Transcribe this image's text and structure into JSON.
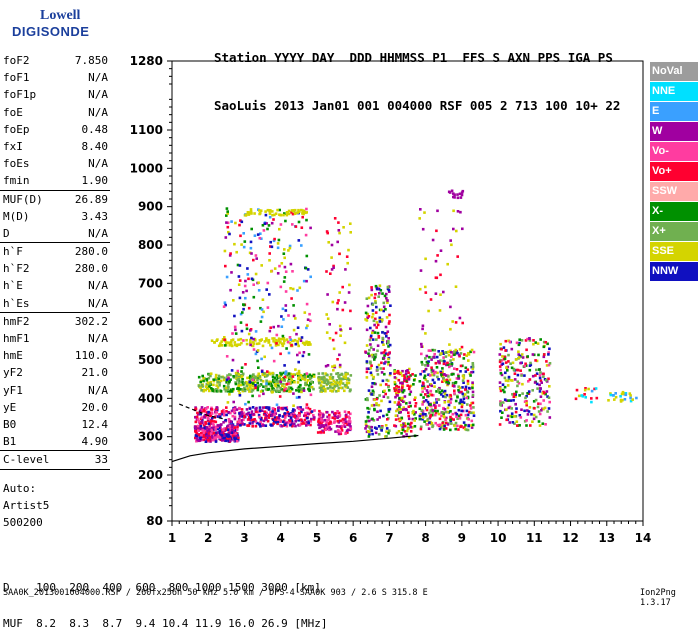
{
  "logo": {
    "line1": "Lowell",
    "line2": "DIGISONDE"
  },
  "header": {
    "row1": "Station YYYY DAY  DDD HHMMSS P1  FFS S AXN PPS IGA PS",
    "row2": "SaoLuis 2013 Jan01 001 004000 RSF 005 2 713 100 10+ 22"
  },
  "params": [
    [
      {
        "name": "foF2",
        "value": "7.850"
      },
      {
        "name": "foF1",
        "value": "N/A"
      },
      {
        "name": "foF1p",
        "value": "N/A"
      },
      {
        "name": "foE",
        "value": "N/A"
      },
      {
        "name": "foEp",
        "value": "0.48"
      },
      {
        "name": "fxI",
        "value": "8.40"
      },
      {
        "name": "foEs",
        "value": "N/A"
      },
      {
        "name": "fmin",
        "value": "1.90"
      }
    ],
    [
      {
        "name": "MUF(D)",
        "value": "26.89"
      },
      {
        "name": "M(D)",
        "value": "3.43"
      },
      {
        "name": "D",
        "value": "N/A"
      }
    ],
    [
      {
        "name": "h`F",
        "value": "280.0"
      },
      {
        "name": "h`F2",
        "value": "280.0"
      },
      {
        "name": "h`E",
        "value": "N/A"
      },
      {
        "name": "h`Es",
        "value": "N/A"
      }
    ],
    [
      {
        "name": "hmF2",
        "value": "302.2"
      },
      {
        "name": "hmF1",
        "value": "N/A"
      },
      {
        "name": "hmE",
        "value": "110.0"
      },
      {
        "name": "yF2",
        "value": "21.0"
      },
      {
        "name": "yF1",
        "value": "N/A"
      },
      {
        "name": "yE",
        "value": "20.0"
      },
      {
        "name": "B0",
        "value": "12.4"
      },
      {
        "name": "B1",
        "value": "4.90"
      }
    ],
    [
      {
        "name": "C-level",
        "value": "33"
      }
    ]
  ],
  "auto": {
    "line1": "Auto:",
    "line2": "Artist5",
    "line3": "500200"
  },
  "legend": [
    {
      "label": "NoVal",
      "color": "#9c9c9c"
    },
    {
      "label": "NNE",
      "color": "#00e0ff"
    },
    {
      "label": "E",
      "color": "#3aa0ff"
    },
    {
      "label": "W",
      "color": "#a000a0"
    },
    {
      "label": "Vo-",
      "color": "#ff3ca0"
    },
    {
      "label": "Vo+",
      "color": "#ff0030"
    },
    {
      "label": "SSW",
      "color": "#ffaaaa"
    },
    {
      "label": "X-",
      "color": "#009000"
    },
    {
      "label": "X+",
      "color": "#70b050"
    },
    {
      "label": "SSE",
      "color": "#d4d400"
    },
    {
      "label": "NNW",
      "color": "#1010c0"
    }
  ],
  "dmuf": {
    "d_row": "D    100  200  400  600  800 1000 1500 3000 [km]",
    "muf_row": "MUF  8.2  8.3  8.7  9.4 10.4 11.9 16.0 26.9 [MHz]"
  },
  "footer": "SAA0K_2013001004000.RSF / 260fx256h 50 kHz 5.0 km / DPS-4 SAA0K 903 / 2.6 S 315.8 E",
  "version": "Ion2Png 1.3.17",
  "chart_data": {
    "type": "scatter",
    "x_ticks": [
      1,
      2,
      3,
      4,
      5,
      6,
      7,
      8,
      9,
      10,
      11,
      12,
      13,
      14
    ],
    "y_ticks": [
      80,
      200,
      300,
      400,
      500,
      600,
      700,
      800,
      900,
      1000,
      1100,
      1280
    ],
    "xlim": [
      1,
      14
    ],
    "ylim": [
      80,
      1280
    ],
    "grid": false,
    "legend_position": "right",
    "clusters": [
      {
        "x": [
          1.6,
          2.8
        ],
        "y": [
          290,
          330
        ],
        "colors": [
          "#a000a0",
          "#ff0030",
          "#ff3ca0",
          "#1010c0"
        ],
        "count": 320
      },
      {
        "x": [
          1.6,
          4.9
        ],
        "y": [
          330,
          380
        ],
        "colors": [
          "#a000a0",
          "#ff0030",
          "#1010c0",
          "#ff3ca0"
        ],
        "count": 420
      },
      {
        "x": [
          1.7,
          4.9
        ],
        "y": [
          420,
          470
        ],
        "colors": [
          "#d4d400",
          "#009000",
          "#70b050"
        ],
        "count": 380
      },
      {
        "x": [
          2.0,
          4.8
        ],
        "y": [
          540,
          560
        ],
        "colors": [
          "#d4d400"
        ],
        "count": 100
      },
      {
        "x": [
          2.4,
          4.8
        ],
        "y": [
          380,
          900
        ],
        "colors": [
          "#a000a0",
          "#d4d400",
          "#ff0030",
          "#009000",
          "#1010c0",
          "#ff3ca0",
          "#3aa0ff"
        ],
        "count": 300
      },
      {
        "x": [
          3.0,
          4.7
        ],
        "y": [
          880,
          895
        ],
        "colors": [
          "#d4d400"
        ],
        "count": 50
      },
      {
        "x": [
          5.0,
          5.9
        ],
        "y": [
          420,
          470
        ],
        "colors": [
          "#d4d400",
          "#70b050"
        ],
        "count": 120
      },
      {
        "x": [
          5.0,
          5.9
        ],
        "y": [
          310,
          370
        ],
        "colors": [
          "#a000a0",
          "#ff0030",
          "#ff3ca0"
        ],
        "count": 140
      },
      {
        "x": [
          5.2,
          5.9
        ],
        "y": [
          470,
          880
        ],
        "colors": [
          "#d4d400",
          "#a000a0",
          "#ff0030"
        ],
        "count": 60
      },
      {
        "x": [
          6.3,
          7.0
        ],
        "y": [
          300,
          700
        ],
        "colors": [
          "#d4d400",
          "#a000a0",
          "#ff0030",
          "#009000",
          "#70b050",
          "#1010c0"
        ],
        "count": 260
      },
      {
        "x": [
          7.1,
          7.7
        ],
        "y": [
          300,
          480
        ],
        "colors": [
          "#a000a0",
          "#ff0030",
          "#d4d400",
          "#009000"
        ],
        "count": 160
      },
      {
        "x": [
          7.8,
          9.3
        ],
        "y": [
          320,
          530
        ],
        "colors": [
          "#a000a0",
          "#ff0030",
          "#d4d400",
          "#009000",
          "#70b050",
          "#1010c0",
          "#ff3ca0"
        ],
        "count": 420
      },
      {
        "x": [
          7.8,
          9.0
        ],
        "y": [
          530,
          900
        ],
        "colors": [
          "#a000a0",
          "#ff0030",
          "#d4d400"
        ],
        "count": 50
      },
      {
        "x": [
          8.6,
          9.0
        ],
        "y": [
          925,
          945
        ],
        "colors": [
          "#a000a0"
        ],
        "count": 14
      },
      {
        "x": [
          10.0,
          11.4
        ],
        "y": [
          330,
          560
        ],
        "colors": [
          "#a000a0",
          "#ff0030",
          "#ff3ca0",
          "#d4d400",
          "#009000",
          "#70b050",
          "#1010c0"
        ],
        "count": 260
      },
      {
        "x": [
          12.1,
          12.7
        ],
        "y": [
          390,
          430
        ],
        "colors": [
          "#ff0030",
          "#d4d400",
          "#00e0ff",
          "#3aa0ff"
        ],
        "count": 16
      },
      {
        "x": [
          13.0,
          13.8
        ],
        "y": [
          395,
          420
        ],
        "colors": [
          "#00e0ff",
          "#3aa0ff",
          "#d4d400"
        ],
        "count": 26
      }
    ],
    "dashed_curve": {
      "x": [
        1.2,
        2.0,
        2.5
      ],
      "y": [
        385,
        355,
        345
      ]
    },
    "solid_curve": {
      "x": [
        1.0,
        1.5,
        2.0,
        3.0,
        4.0,
        5.0,
        6.0,
        7.0,
        7.8
      ],
      "y": [
        235,
        250,
        258,
        268,
        275,
        282,
        288,
        296,
        303
      ]
    }
  }
}
